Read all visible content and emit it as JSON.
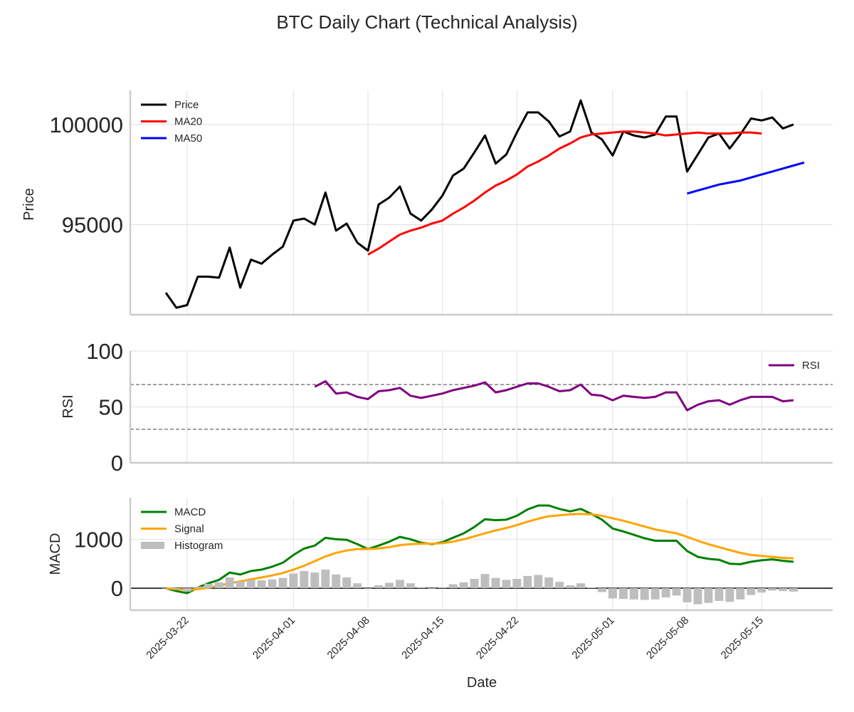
{
  "chart_data": [
    {
      "type": "line",
      "panel": "price",
      "title": "BTC Daily Chart (Technical Analysis)",
      "ylabel": "Price",
      "xlabel": "",
      "ylim": [
        90500,
        101700
      ],
      "yticks": [
        95000,
        100000
      ],
      "ytick_labels": [
        "95000",
        "100000"
      ],
      "grid": true,
      "legend": "top-left",
      "x_start": 0,
      "series": [
        {
          "name": "Price",
          "color": "#000000",
          "start": 0,
          "values": [
            91600,
            90850,
            90980,
            92400,
            92400,
            92350,
            93850,
            91850,
            93250,
            93050,
            93500,
            93900,
            95200,
            95300,
            95000,
            96600,
            94700,
            95050,
            94100,
            93700,
            96000,
            96350,
            96900,
            95550,
            95200,
            95750,
            96450,
            97450,
            97800,
            98600,
            99450,
            98050,
            98500,
            99600,
            100600,
            100600,
            100150,
            99400,
            99650,
            101200,
            99600,
            99250,
            98450,
            99650,
            99450,
            99350,
            99500,
            100400,
            100400,
            97650,
            98500,
            99350,
            99550,
            98800,
            99500,
            100300,
            100200,
            100350,
            99800,
            100000
          ]
        },
        {
          "name": "MA20",
          "color": "#ff0000",
          "start": 19,
          "values": [
            93500,
            93800,
            94150,
            94500,
            94700,
            94850,
            95050,
            95200,
            95550,
            95850,
            96200,
            96600,
            96950,
            97200,
            97500,
            97900,
            98150,
            98450,
            98800,
            99050,
            99350,
            99500,
            99550,
            99600,
            99650,
            99650,
            99600,
            99550,
            99450,
            99500,
            99550,
            99600,
            99550,
            99550,
            99550,
            99600,
            99600,
            99550
          ]
        },
        {
          "name": "MA50",
          "color": "#0000ff",
          "start": 49,
          "values": [
            96550,
            96700,
            96850,
            97000,
            97100,
            97200,
            97350,
            97500,
            97650,
            97800,
            97950,
            98100
          ]
        }
      ]
    },
    {
      "type": "line",
      "panel": "rsi",
      "ylabel": "RSI",
      "ylim": [
        0,
        100
      ],
      "yticks": [
        0,
        50,
        100
      ],
      "ytick_labels": [
        "0",
        "50",
        "100"
      ],
      "hlines": [
        70,
        30
      ],
      "grid": true,
      "legend": "top-right",
      "series": [
        {
          "name": "RSI",
          "color": "#800080",
          "start": 14,
          "values": [
            68,
            73,
            62,
            63,
            59,
            57,
            64,
            65,
            67,
            60,
            58,
            60,
            62,
            65,
            67,
            69,
            72,
            63,
            65,
            68,
            71,
            71,
            68,
            64,
            65,
            70,
            61,
            60,
            56,
            60,
            59,
            58,
            59,
            63,
            63,
            47,
            52,
            55,
            56,
            52,
            56,
            59,
            59,
            59,
            55,
            56
          ]
        }
      ]
    },
    {
      "type": "line",
      "panel": "macd",
      "ylabel": "MACD",
      "xlabel": "Date",
      "ylim": [
        -450,
        1850
      ],
      "yticks": [
        0,
        1000
      ],
      "ytick_labels": [
        "0",
        "1000"
      ],
      "zero_line": true,
      "grid": true,
      "legend": "top-left",
      "x_dates": [
        "2025-03-22",
        "2025-04-01",
        "2025-04-08",
        "2025-04-15",
        "2025-04-22",
        "2025-05-01",
        "2025-05-08",
        "2025-05-15"
      ],
      "x_date_index": [
        2,
        12,
        19,
        26,
        33,
        42,
        49,
        56
      ],
      "series": [
        {
          "name": "MACD",
          "color": "#008000",
          "start": 0,
          "values": [
            0,
            -60,
            -100,
            10,
            100,
            170,
            320,
            280,
            350,
            380,
            440,
            520,
            680,
            810,
            870,
            1030,
            1000,
            990,
            900,
            800,
            870,
            950,
            1050,
            1000,
            930,
            900,
            940,
            1030,
            1120,
            1250,
            1410,
            1390,
            1400,
            1480,
            1610,
            1690,
            1690,
            1620,
            1570,
            1620,
            1520,
            1400,
            1220,
            1160,
            1090,
            1020,
            970,
            970,
            970,
            760,
            640,
            600,
            580,
            500,
            490,
            540,
            570,
            590,
            560,
            540
          ]
        },
        {
          "name": "Signal",
          "color": "#ffa500",
          "start": 0,
          "values": [
            0,
            -20,
            -30,
            -20,
            10,
            50,
            100,
            140,
            180,
            220,
            260,
            310,
            380,
            460,
            550,
            650,
            720,
            770,
            800,
            800,
            810,
            840,
            880,
            900,
            910,
            910,
            920,
            950,
            1000,
            1060,
            1120,
            1180,
            1230,
            1290,
            1360,
            1420,
            1470,
            1490,
            1510,
            1520,
            1510,
            1480,
            1430,
            1380,
            1320,
            1260,
            1200,
            1160,
            1120,
            1050,
            970,
            900,
            840,
            780,
            720,
            680,
            660,
            640,
            620,
            610
          ]
        },
        {
          "name": "Histogram",
          "color": "#bebebe",
          "kind": "bar",
          "start": 0,
          "values": [
            0,
            -20,
            -70,
            30,
            90,
            120,
            220,
            140,
            170,
            160,
            180,
            210,
            300,
            350,
            320,
            380,
            280,
            220,
            100,
            0,
            60,
            110,
            170,
            100,
            20,
            -10,
            20,
            80,
            120,
            190,
            290,
            210,
            170,
            190,
            250,
            270,
            220,
            130,
            60,
            100,
            10,
            -80,
            -210,
            -220,
            -230,
            -240,
            -230,
            -190,
            -150,
            -290,
            -330,
            -300,
            -260,
            -280,
            -230,
            -140,
            -90,
            -50,
            -60,
            -70
          ]
        }
      ]
    }
  ]
}
